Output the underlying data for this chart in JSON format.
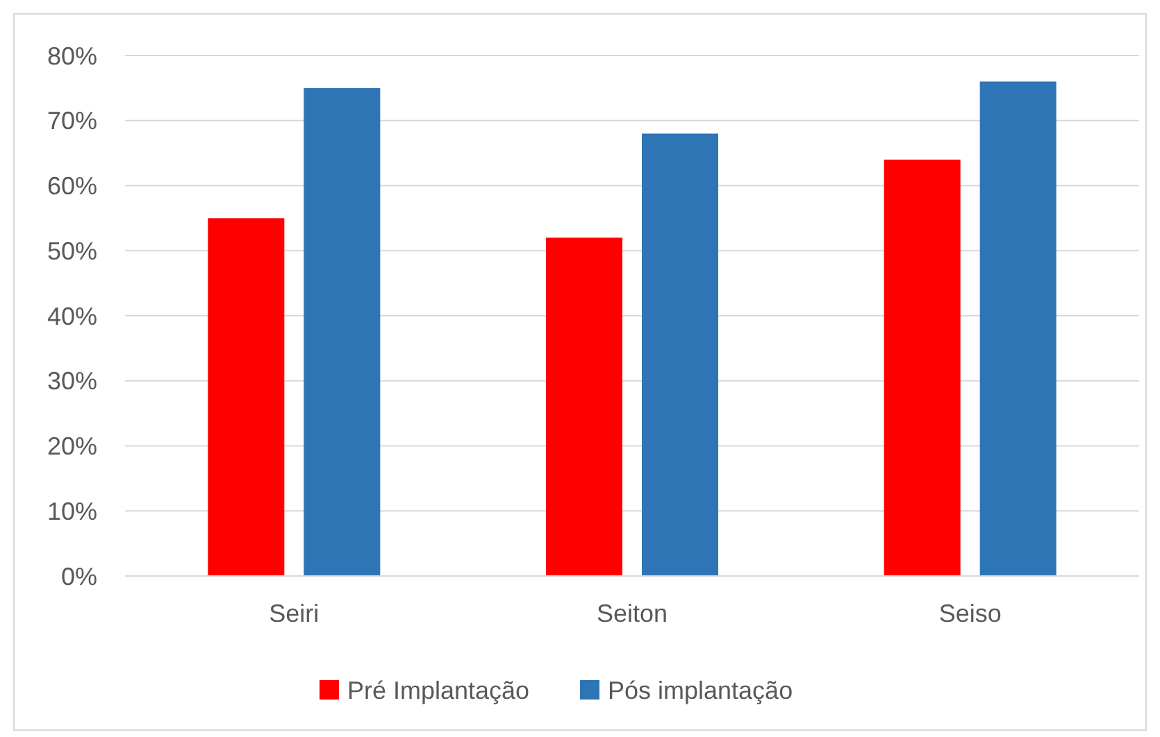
{
  "chart_data": {
    "type": "bar",
    "categories": [
      "Seiri",
      "Seiton",
      "Seiso"
    ],
    "series": [
      {
        "name": "Pré Implantação",
        "color": "#ff0000",
        "values": [
          55,
          52,
          64
        ]
      },
      {
        "name": "Pós implantação",
        "color": "#2e75b6",
        "values": [
          75,
          68,
          76
        ]
      }
    ],
    "ylim": [
      0,
      80
    ],
    "yticks": [
      {
        "value": 0,
        "label": "0%"
      },
      {
        "value": 10,
        "label": "10%"
      },
      {
        "value": 20,
        "label": "20%"
      },
      {
        "value": 30,
        "label": "30%"
      },
      {
        "value": 40,
        "label": "40%"
      },
      {
        "value": 50,
        "label": "50%"
      },
      {
        "value": 60,
        "label": "60%"
      },
      {
        "value": 70,
        "label": "70%"
      },
      {
        "value": 80,
        "label": "80%"
      }
    ],
    "grid": "y",
    "legend": "bottom"
  }
}
